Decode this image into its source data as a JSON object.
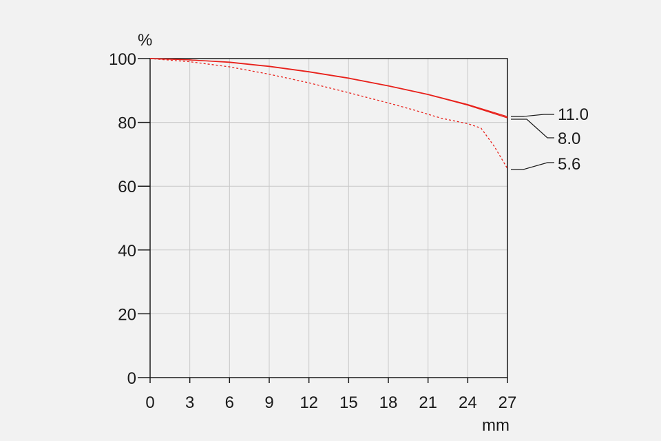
{
  "chart_data": {
    "type": "line",
    "y_unit": "%",
    "x_unit": "mm",
    "xlim": [
      0,
      27
    ],
    "ylim": [
      0,
      100
    ],
    "x_ticks": [
      "0",
      "3",
      "6",
      "9",
      "12",
      "15",
      "18",
      "21",
      "24",
      "27"
    ],
    "y_ticks": [
      "0",
      "20",
      "40",
      "60",
      "80",
      "100"
    ],
    "grid": true,
    "colors": {
      "series": "#e8211b",
      "grid": "#c8c8c8",
      "axis": "#1a1a1a",
      "background": "#f2f2f2"
    },
    "series": [
      {
        "name": "11.0",
        "style": "solid",
        "x": [
          0,
          3,
          6,
          9,
          12,
          15,
          18,
          21,
          24,
          27
        ],
        "y": [
          100,
          99.6,
          98.9,
          97.6,
          95.9,
          93.9,
          91.5,
          88.8,
          85.6,
          81.8
        ]
      },
      {
        "name": "8.0",
        "style": "solid",
        "x": [
          0,
          3,
          6,
          9,
          12,
          15,
          18,
          21,
          24,
          27
        ],
        "y": [
          100,
          99.6,
          98.8,
          97.5,
          95.8,
          93.8,
          91.4,
          88.7,
          85.4,
          81.4
        ]
      },
      {
        "name": "5.6",
        "style": "dashed",
        "x": [
          0,
          3,
          6,
          9,
          12,
          15,
          18,
          20,
          22,
          24,
          25,
          26,
          27
        ],
        "y": [
          100,
          99.0,
          97.4,
          95.1,
          92.4,
          89.3,
          86.1,
          83.8,
          81.3,
          79.6,
          78.2,
          72.5,
          65.5
        ]
      }
    ]
  }
}
